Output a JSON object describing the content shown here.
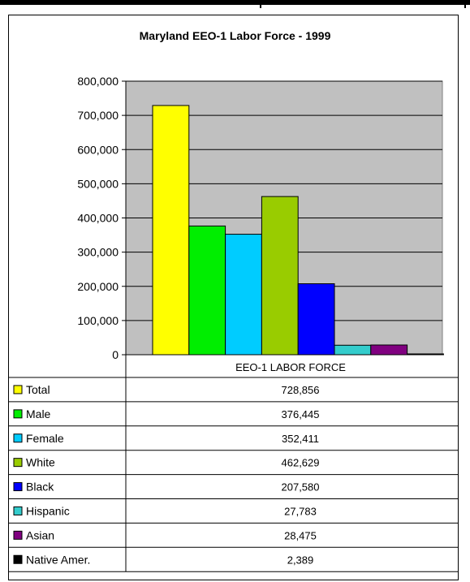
{
  "chart_data": {
    "type": "bar",
    "title": "Maryland  EEO-1 Labor Force - 1999",
    "xlabel": "",
    "ylabel": "",
    "categories": [
      "EEO-1 LABOR FORCE"
    ],
    "ylim": [
      0,
      800000
    ],
    "yticks": [
      "0",
      "100,000",
      "200,000",
      "300,000",
      "400,000",
      "500,000",
      "600,000",
      "700,000",
      "800,000"
    ],
    "grid": true,
    "legend": "data-table",
    "series": [
      {
        "name": "Total",
        "values": [
          728856
        ],
        "label": "728,856",
        "color": "#ffff00"
      },
      {
        "name": "Male",
        "values": [
          376445
        ],
        "label": "376,445",
        "color": "#00ee00"
      },
      {
        "name": "Female",
        "values": [
          352411
        ],
        "label": "352,411",
        "color": "#00ccff"
      },
      {
        "name": "White",
        "values": [
          462629
        ],
        "label": "462,629",
        "color": "#99cc00"
      },
      {
        "name": "Black",
        "values": [
          207580
        ],
        "label": "207,580",
        "color": "#0000ff"
      },
      {
        "name": "Hispanic",
        "values": [
          27783
        ],
        "label": "27,783",
        "color": "#33cccc"
      },
      {
        "name": "Asian",
        "values": [
          28475
        ],
        "label": "28,475",
        "color": "#800080"
      },
      {
        "name": "Native Amer.",
        "values": [
          2389
        ],
        "label": "2,389",
        "color": "#000000"
      }
    ],
    "plot_background": "#c0c0c0"
  }
}
